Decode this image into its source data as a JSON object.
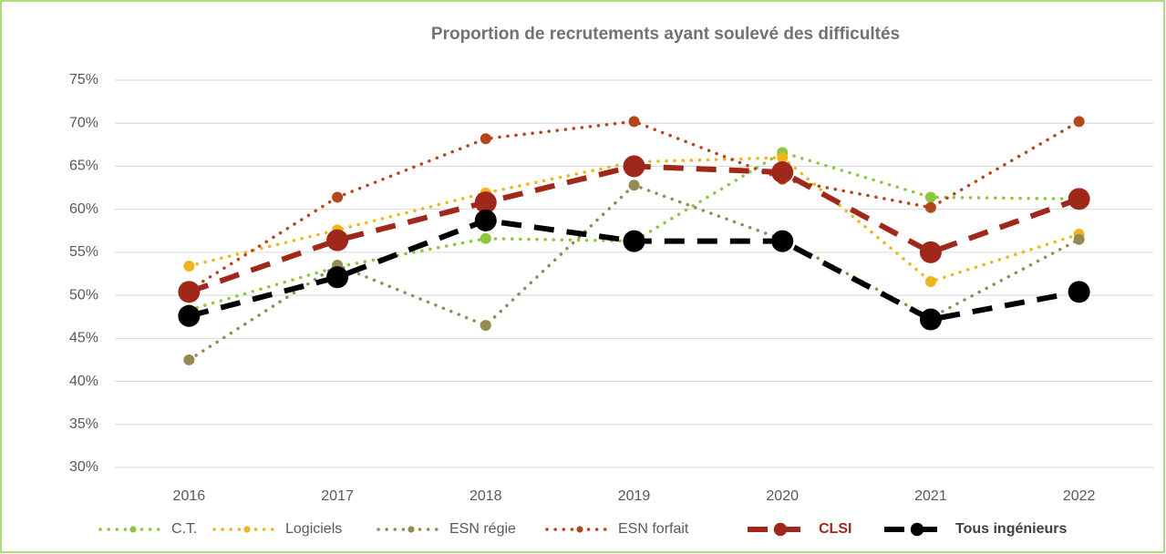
{
  "chart_data": {
    "type": "line",
    "title": "Proportion de recrutements ayant soulevé des difficultés",
    "categories": [
      "2016",
      "2017",
      "2018",
      "2019",
      "2020",
      "2021",
      "2022"
    ],
    "series": [
      {
        "name": "C.T.",
        "color": "#8dc63f",
        "line_style": "dotted",
        "values": [
          48.3,
          53.3,
          56.6,
          56.3,
          66.6,
          61.4,
          61.2
        ]
      },
      {
        "name": "Logiciels",
        "color": "#f0b41c",
        "line_style": "dotted",
        "values": [
          53.4,
          57.6,
          61.9,
          65.5,
          66.0,
          51.6,
          57.1
        ]
      },
      {
        "name": "ESN régie",
        "color": "#948a54",
        "line_style": "dotted",
        "values": [
          42.5,
          53.5,
          46.5,
          62.8,
          56.5,
          47.4,
          56.5
        ]
      },
      {
        "name": "ESN forfait",
        "color": "#b5451b",
        "line_style": "dotted",
        "values": [
          50.6,
          61.4,
          68.2,
          70.2,
          63.5,
          60.2,
          70.2
        ]
      },
      {
        "name": "CLSI",
        "color": "#a0281a",
        "line_style": "dashed",
        "values": [
          50.4,
          56.4,
          60.8,
          65.0,
          64.3,
          55.0,
          61.2
        ]
      },
      {
        "name": "Tous ingénieurs",
        "color": "#000000",
        "line_style": "dashed",
        "values": [
          47.6,
          52.1,
          58.7,
          56.3,
          56.3,
          47.2,
          50.4
        ]
      }
    ],
    "ylim": [
      30,
      75
    ],
    "yticks": [
      {
        "value": 30,
        "label": "30%"
      },
      {
        "value": 35,
        "label": "35%"
      },
      {
        "value": 40,
        "label": "40%"
      },
      {
        "value": 45,
        "label": "45%"
      },
      {
        "value": 50,
        "label": "50%"
      },
      {
        "value": 55,
        "label": "55%"
      },
      {
        "value": 60,
        "label": "60%"
      },
      {
        "value": 65,
        "label": "65%"
      },
      {
        "value": 70,
        "label": "70%"
      },
      {
        "value": 75,
        "label": "75%"
      }
    ],
    "grid": true,
    "legend": "bottom"
  }
}
